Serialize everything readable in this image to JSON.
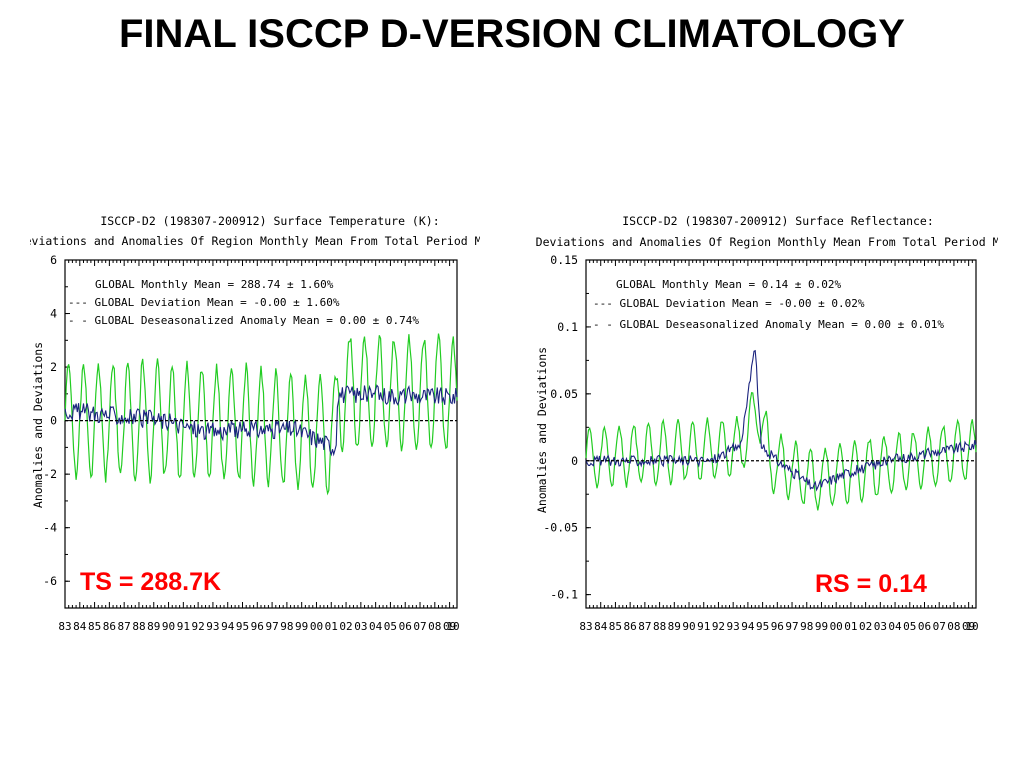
{
  "slide": {
    "title": "FINAL ISCCP D-VERSION CLIMATOLOGY"
  },
  "colors": {
    "deviation": "#22cc22",
    "anomaly": "#1a237e",
    "zero_line": "#000000",
    "callout": "#ff0000"
  },
  "chart_data": [
    {
      "type": "line",
      "title": "ISCCP-D2 (198307-200912) Surface Temperature (K):",
      "subtitle": "Deviations and Anomalies Of Region Monthly Mean From Total Period Mean",
      "ylabel": "Anomalies and Deviations",
      "xlabel": "",
      "ylim": [
        -7,
        6
      ],
      "ytick_labels": [
        "6",
        "4",
        "2",
        "0",
        "-2",
        "-4",
        "-6"
      ],
      "ytick_values": [
        6,
        4,
        2,
        0,
        -2,
        -4,
        -6
      ],
      "x_range": [
        1983.5,
        2010.0
      ],
      "xtick_labels": [
        "83",
        "84",
        "85",
        "86",
        "87",
        "88",
        "89",
        "90",
        "91",
        "92",
        "93",
        "94",
        "95",
        "96",
        "97",
        "98",
        "99",
        "00",
        "01",
        "02",
        "03",
        "04",
        "05",
        "06",
        "07",
        "08",
        "09",
        "10"
      ],
      "legend": [
        "GLOBAL Monthly Mean = 288.74 ± 1.60%",
        "--- GLOBAL Deviation Mean = -0.00 ± 1.60%",
        "- - GLOBAL Deseasonalized Anomaly Mean = 0.00 ± 0.74%"
      ],
      "callout": "TS = 288.7K",
      "series": [
        {
          "style": "seasonal_deviation",
          "amplitude": 2.1,
          "segments": [
            [
              1983.5,
              0.0
            ],
            [
              1990,
              0.0
            ],
            [
              1996,
              -0.2
            ],
            [
              2001.8,
              -0.6
            ],
            [
              2002.0,
              1.1
            ],
            [
              2010.0,
              0.9
            ]
          ]
        },
        {
          "style": "deseasonalized_anomaly",
          "noise": 0.35,
          "segments": [
            [
              1983.5,
              0.4
            ],
            [
              1990,
              0.0
            ],
            [
              1993,
              -0.4
            ],
            [
              1999,
              -0.3
            ],
            [
              2001.8,
              -1.0
            ],
            [
              2002.0,
              1.0
            ],
            [
              2010.0,
              0.9
            ]
          ]
        }
      ]
    },
    {
      "type": "line",
      "title": "ISCCP-D2 (198307-200912) Surface Reflectance:",
      "subtitle": "Deviations and Anomalies Of Region Monthly Mean From Total Period Mean",
      "ylabel": "Anomalies and Deviations",
      "xlabel": "",
      "ylim": [
        -0.11,
        0.15
      ],
      "ytick_labels": [
        "0.15",
        "0.1",
        "0.05",
        "0",
        "-0.05",
        "-0.1"
      ],
      "ytick_values": [
        0.15,
        0.1,
        0.05,
        0,
        -0.05,
        -0.1
      ],
      "x_range": [
        1983.5,
        2010.0
      ],
      "xtick_labels": [
        "83",
        "84",
        "85",
        "86",
        "87",
        "88",
        "89",
        "90",
        "91",
        "92",
        "93",
        "94",
        "95",
        "96",
        "97",
        "98",
        "99",
        "00",
        "01",
        "02",
        "03",
        "04",
        "05",
        "06",
        "07",
        "08",
        "09",
        "10"
      ],
      "legend": [
        "GLOBAL Monthly Mean = 0.14 ± 0.02%",
        "--- GLOBAL Deviation Mean = -0.00 ± 0.02%",
        "- - GLOBAL Deseasonalized Anomaly Mean = 0.00 ± 0.01%"
      ],
      "callout": "RS = 0.14",
      "series": [
        {
          "style": "seasonal_deviation",
          "amplitude": 0.022,
          "segments": [
            [
              1983.5,
              0.002
            ],
            [
              1994,
              0.01
            ],
            [
              1995.2,
              0.04
            ],
            [
              1996,
              0.0
            ],
            [
              1999,
              -0.015
            ],
            [
              2003,
              -0.005
            ],
            [
              2010.0,
              0.008
            ]
          ]
        },
        {
          "style": "deseasonalized_anomaly",
          "noise": 0.004,
          "segments": [
            [
              1983.5,
              0.0
            ],
            [
              1992,
              0.0
            ],
            [
              1994,
              0.012
            ],
            [
              1995.0,
              0.085
            ],
            [
              1995.4,
              0.01
            ],
            [
              1996.5,
              0.0
            ],
            [
              1999,
              -0.02
            ],
            [
              2001,
              -0.01
            ],
            [
              2004,
              0.0
            ],
            [
              2010.0,
              0.012
            ]
          ]
        }
      ]
    }
  ]
}
